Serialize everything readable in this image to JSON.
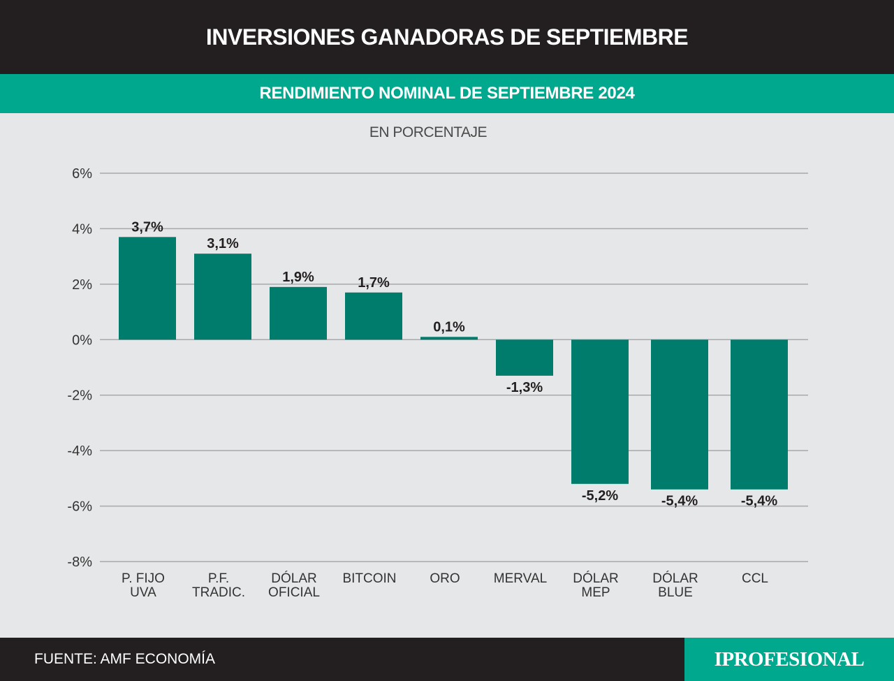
{
  "header": {
    "title": "INVERSIONES GANADORAS DE SEPTIEMBRE",
    "subtitle": "RENDIMIENTO NOMINAL DE SEPTIEMBRE 2024"
  },
  "footer": {
    "source": "FUENTE: AMF ECONOMÍA",
    "brand": "IPROFESIONAL"
  },
  "colors": {
    "bar": "#007c6c",
    "accent": "#00a88e",
    "dark": "#231f20",
    "grid": "#a7a9ac"
  },
  "chart_data": {
    "type": "bar",
    "unit_label": "EN PORCENTAJE",
    "categories": [
      [
        "P. FIJO",
        "UVA"
      ],
      [
        "P.F.",
        "TRADIC."
      ],
      [
        "DÓLAR",
        "OFICIAL"
      ],
      [
        "BITCOIN"
      ],
      [
        "ORO"
      ],
      [
        "MERVAL"
      ],
      [
        "DÓLAR",
        "MEP"
      ],
      [
        "DÓLAR",
        "BLUE"
      ],
      [
        "CCL"
      ]
    ],
    "values": [
      3.7,
      3.1,
      1.9,
      1.7,
      0.1,
      -1.3,
      -5.2,
      -5.4,
      -5.4
    ],
    "value_labels": [
      "3,7%",
      "3,1%",
      "1,9%",
      "1,7%",
      "0,1%",
      "-1,3%",
      "-5,2%",
      "-5,4%",
      "-5,4%"
    ],
    "y_ticks": [
      "6%",
      "4%",
      "2%",
      "0%",
      "-2%",
      "-4%",
      "-6%",
      "-8%"
    ],
    "ylim": [
      -8,
      6
    ],
    "grid": true,
    "legend": "none"
  }
}
